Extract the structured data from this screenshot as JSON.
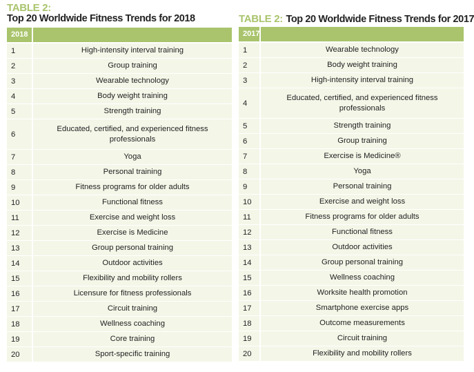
{
  "left": {
    "label": "TABLE 2:",
    "title": "Top 20 Worldwide Fitness Trends for 2018",
    "header_year": "2018",
    "rows": [
      [
        "1",
        "High-intensity interval training"
      ],
      [
        "2",
        "Group training"
      ],
      [
        "3",
        "Wearable technology"
      ],
      [
        "4",
        "Body weight training"
      ],
      [
        "5",
        "Strength training"
      ],
      [
        "6",
        "Educated, certified, and experienced fitness professionals"
      ],
      [
        "7",
        "Yoga"
      ],
      [
        "8",
        "Personal training"
      ],
      [
        "9",
        "Fitness programs for older adults"
      ],
      [
        "10",
        "Functional fitness"
      ],
      [
        "11",
        "Exercise and weight loss"
      ],
      [
        "12",
        "Exercise is Medicine"
      ],
      [
        "13",
        "Group personal training"
      ],
      [
        "14",
        "Outdoor activities"
      ],
      [
        "15",
        "Flexibility and mobility rollers"
      ],
      [
        "16",
        "Licensure for fitness professionals"
      ],
      [
        "17",
        "Circuit training"
      ],
      [
        "18",
        "Wellness coaching"
      ],
      [
        "19",
        "Core training"
      ],
      [
        "20",
        "Sport-specific training"
      ]
    ]
  },
  "right": {
    "label": "TABLE 2:",
    "title": "Top 20 Worldwide Fitness Trends for 2017",
    "header_year": "2017",
    "rows": [
      [
        "1",
        "Wearable technology"
      ],
      [
        "2",
        "Body weight training"
      ],
      [
        "3",
        "High-intensity interval training"
      ],
      [
        "4",
        "Educated, certified, and experienced fitness professionals"
      ],
      [
        "5",
        "Strength training"
      ],
      [
        "6",
        "Group training"
      ],
      [
        "7",
        "Exercise is Medicine®"
      ],
      [
        "8",
        "Yoga"
      ],
      [
        "9",
        "Personal training"
      ],
      [
        "10",
        "Exercise and weight loss"
      ],
      [
        "11",
        "Fitness programs for older adults"
      ],
      [
        "12",
        "Functional fitness"
      ],
      [
        "13",
        "Outdoor activities"
      ],
      [
        "14",
        "Group personal training"
      ],
      [
        "15",
        "Wellness coaching"
      ],
      [
        "16",
        "Worksite health promotion"
      ],
      [
        "17",
        "Smartphone exercise apps"
      ],
      [
        "18",
        "Outcome measurements"
      ],
      [
        "19",
        "Circuit training"
      ],
      [
        "20",
        "Flexibility and mobility rollers"
      ]
    ]
  },
  "colors": {
    "accent": "#a9c46c",
    "row_bg": "#f4f6e8"
  }
}
